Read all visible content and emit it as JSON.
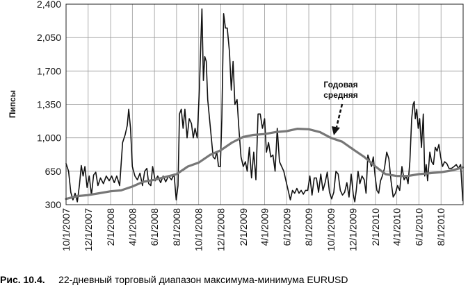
{
  "chart_data": {
    "type": "line",
    "ylabel": "Пипсы",
    "ylim": [
      300,
      2400
    ],
    "yticks": [
      "2,400",
      "2,050",
      "1,700",
      "1,350",
      "1,000",
      "650",
      "300"
    ],
    "ytick_values": [
      2400,
      2050,
      1700,
      1350,
      1000,
      650,
      300
    ],
    "xlim": [
      "2007-10-01",
      "2010-10-01"
    ],
    "xticks": [
      "10/1/2007",
      "12/1/2007",
      "2/1/2008",
      "4/1/2008",
      "6/1/2008",
      "8/1/2008",
      "10/1/2008",
      "12/1/2008",
      "2/1/2009",
      "4/1/2009",
      "6/1/2009",
      "8/1/2009",
      "10/1/2009",
      "12/1/2009",
      "2/1/2010",
      "4/1/2010",
      "6/1/2010",
      "8/1/2010"
    ],
    "grid": true,
    "annotation": {
      "line1": "Годовая",
      "line2": "средняя"
    },
    "series": [
      {
        "color": "#111111",
        "style": "thin",
        "points": [
          [
            "2007-10-01",
            730
          ],
          [
            "2007-10-08",
            650
          ],
          [
            "2007-10-14",
            430
          ],
          [
            "2007-10-20",
            350
          ],
          [
            "2007-10-26",
            420
          ],
          [
            "2007-11-01",
            330
          ],
          [
            "2007-11-07",
            510
          ],
          [
            "2007-11-12",
            710
          ],
          [
            "2007-11-17",
            600
          ],
          [
            "2007-11-22",
            700
          ],
          [
            "2007-11-28",
            480
          ],
          [
            "2007-12-04",
            600
          ],
          [
            "2007-12-10",
            400
          ],
          [
            "2007-12-16",
            610
          ],
          [
            "2007-12-22",
            640
          ],
          [
            "2007-12-28",
            500
          ],
          [
            "2008-01-04",
            580
          ],
          [
            "2008-01-12",
            520
          ],
          [
            "2008-01-20",
            600
          ],
          [
            "2008-01-28",
            550
          ],
          [
            "2008-02-04",
            600
          ],
          [
            "2008-02-11",
            530
          ],
          [
            "2008-02-18",
            600
          ],
          [
            "2008-02-26",
            500
          ],
          [
            "2008-03-05",
            950
          ],
          [
            "2008-03-12",
            1030
          ],
          [
            "2008-03-18",
            1130
          ],
          [
            "2008-03-22",
            1300
          ],
          [
            "2008-03-27",
            1100
          ],
          [
            "2008-04-01",
            700
          ],
          [
            "2008-04-08",
            600
          ],
          [
            "2008-04-15",
            560
          ],
          [
            "2008-04-22",
            630
          ],
          [
            "2008-04-29",
            500
          ],
          [
            "2008-05-05",
            650
          ],
          [
            "2008-05-11",
            680
          ],
          [
            "2008-05-16",
            520
          ],
          [
            "2008-05-22",
            500
          ],
          [
            "2008-05-27",
            700
          ],
          [
            "2008-06-03",
            550
          ],
          [
            "2008-06-10",
            600
          ],
          [
            "2008-06-18",
            530
          ],
          [
            "2008-06-25",
            600
          ],
          [
            "2008-07-02",
            540
          ],
          [
            "2008-07-10",
            600
          ],
          [
            "2008-07-18",
            560
          ],
          [
            "2008-07-25",
            620
          ],
          [
            "2008-07-31",
            350
          ],
          [
            "2008-08-05",
            500
          ],
          [
            "2008-08-09",
            1250
          ],
          [
            "2008-08-14",
            1300
          ],
          [
            "2008-08-19",
            1100
          ],
          [
            "2008-08-24",
            1300
          ],
          [
            "2008-08-30",
            1000
          ],
          [
            "2008-09-05",
            1200
          ],
          [
            "2008-09-11",
            1150
          ],
          [
            "2008-09-16",
            1000
          ],
          [
            "2008-09-21",
            1100
          ],
          [
            "2008-09-27",
            1000
          ],
          [
            "2008-10-03",
            1500
          ],
          [
            "2008-10-07",
            2000
          ],
          [
            "2008-10-10",
            2350
          ],
          [
            "2008-10-14",
            1600
          ],
          [
            "2008-10-18",
            1850
          ],
          [
            "2008-10-22",
            1800
          ],
          [
            "2008-10-26",
            1400
          ],
          [
            "2008-10-31",
            1200
          ],
          [
            "2008-11-05",
            1000
          ],
          [
            "2008-11-10",
            800
          ],
          [
            "2008-11-15",
            780
          ],
          [
            "2008-11-20",
            850
          ],
          [
            "2008-11-25",
            700
          ],
          [
            "2008-11-30",
            700
          ],
          [
            "2008-12-04",
            1200
          ],
          [
            "2008-12-09",
            2300
          ],
          [
            "2008-12-14",
            2150
          ],
          [
            "2008-12-19",
            2150
          ],
          [
            "2008-12-25",
            1900
          ],
          [
            "2008-12-30",
            1500
          ],
          [
            "2009-01-04",
            1800
          ],
          [
            "2009-01-09",
            1350
          ],
          [
            "2009-01-15",
            1400
          ],
          [
            "2009-01-20",
            1100
          ],
          [
            "2009-01-26",
            800
          ],
          [
            "2009-02-01",
            700
          ],
          [
            "2009-02-07",
            750
          ],
          [
            "2009-02-12",
            650
          ],
          [
            "2009-02-18",
            900
          ],
          [
            "2009-02-24",
            580
          ],
          [
            "2009-03-02",
            850
          ],
          [
            "2009-03-08",
            560
          ],
          [
            "2009-03-14",
            1250
          ],
          [
            "2009-03-20",
            1250
          ],
          [
            "2009-03-26",
            1100
          ],
          [
            "2009-04-01",
            1200
          ],
          [
            "2009-04-06",
            850
          ],
          [
            "2009-04-12",
            950
          ],
          [
            "2009-04-18",
            800
          ],
          [
            "2009-04-24",
            820
          ],
          [
            "2009-04-30",
            650
          ],
          [
            "2009-05-06",
            1100
          ],
          [
            "2009-05-12",
            750
          ],
          [
            "2009-05-18",
            700
          ],
          [
            "2009-05-24",
            650
          ],
          [
            "2009-05-30",
            550
          ],
          [
            "2009-06-05",
            450
          ],
          [
            "2009-06-11",
            350
          ],
          [
            "2009-06-17",
            450
          ],
          [
            "2009-06-23",
            420
          ],
          [
            "2009-06-29",
            470
          ],
          [
            "2009-07-05",
            420
          ],
          [
            "2009-07-11",
            450
          ],
          [
            "2009-07-17",
            410
          ],
          [
            "2009-07-23",
            450
          ],
          [
            "2009-07-29",
            450
          ],
          [
            "2009-08-04",
            600
          ],
          [
            "2009-08-10",
            400
          ],
          [
            "2009-08-16",
            580
          ],
          [
            "2009-08-22",
            580
          ],
          [
            "2009-08-28",
            430
          ],
          [
            "2009-09-03",
            620
          ],
          [
            "2009-09-09",
            450
          ],
          [
            "2009-09-15",
            530
          ],
          [
            "2009-09-21",
            640
          ],
          [
            "2009-09-27",
            430
          ],
          [
            "2009-10-03",
            360
          ],
          [
            "2009-10-09",
            430
          ],
          [
            "2009-10-15",
            650
          ],
          [
            "2009-10-21",
            620
          ],
          [
            "2009-10-27",
            450
          ],
          [
            "2009-11-02",
            400
          ],
          [
            "2009-11-08",
            430
          ],
          [
            "2009-11-14",
            530
          ],
          [
            "2009-11-20",
            380
          ],
          [
            "2009-11-26",
            620
          ],
          [
            "2009-12-02",
            400
          ],
          [
            "2009-12-06",
            330
          ],
          [
            "2009-12-10",
            450
          ],
          [
            "2009-12-15",
            650
          ],
          [
            "2009-12-20",
            520
          ],
          [
            "2009-12-26",
            600
          ],
          [
            "2010-01-01",
            560
          ],
          [
            "2010-01-06",
            420
          ],
          [
            "2010-01-11",
            820
          ],
          [
            "2010-01-16",
            760
          ],
          [
            "2010-01-21",
            700
          ],
          [
            "2010-01-26",
            800
          ],
          [
            "2010-01-31",
            600
          ],
          [
            "2010-02-05",
            450
          ],
          [
            "2010-02-10",
            420
          ],
          [
            "2010-02-15",
            550
          ],
          [
            "2010-02-20",
            600
          ],
          [
            "2010-02-26",
            680
          ],
          [
            "2010-03-04",
            850
          ],
          [
            "2010-03-10",
            780
          ],
          [
            "2010-03-16",
            550
          ],
          [
            "2010-03-22",
            380
          ],
          [
            "2010-03-28",
            420
          ],
          [
            "2010-04-03",
            500
          ],
          [
            "2010-04-09",
            450
          ],
          [
            "2010-04-15",
            700
          ],
          [
            "2010-04-21",
            560
          ],
          [
            "2010-04-27",
            600
          ],
          [
            "2010-05-02",
            520
          ],
          [
            "2010-05-07",
            750
          ],
          [
            "2010-05-12",
            1200
          ],
          [
            "2010-05-16",
            1350
          ],
          [
            "2010-05-19",
            1380
          ],
          [
            "2010-05-22",
            1200
          ],
          [
            "2010-05-26",
            1300
          ],
          [
            "2010-05-30",
            1100
          ],
          [
            "2010-06-03",
            1200
          ],
          [
            "2010-06-08",
            900
          ],
          [
            "2010-06-13",
            1250
          ],
          [
            "2010-06-17",
            600
          ],
          [
            "2010-06-21",
            720
          ],
          [
            "2010-06-25",
            550
          ],
          [
            "2010-07-01",
            850
          ],
          [
            "2010-07-06",
            750
          ],
          [
            "2010-07-11",
            720
          ],
          [
            "2010-07-16",
            900
          ],
          [
            "2010-07-21",
            860
          ],
          [
            "2010-07-26",
            930
          ],
          [
            "2010-07-31",
            800
          ],
          [
            "2010-08-05",
            700
          ],
          [
            "2010-08-11",
            750
          ],
          [
            "2010-08-17",
            730
          ],
          [
            "2010-08-23",
            680
          ],
          [
            "2010-08-30",
            680
          ],
          [
            "2010-09-06",
            700
          ],
          [
            "2010-09-12",
            720
          ],
          [
            "2010-09-18",
            680
          ],
          [
            "2010-09-24",
            720
          ],
          [
            "2010-09-30",
            340
          ]
        ]
      },
      {
        "color": "#777777",
        "style": "thick",
        "points": [
          [
            "2007-10-01",
            360
          ],
          [
            "2007-11-01",
            390
          ],
          [
            "2007-12-01",
            400
          ],
          [
            "2008-01-01",
            420
          ],
          [
            "2008-02-01",
            440
          ],
          [
            "2008-03-01",
            450
          ],
          [
            "2008-04-01",
            490
          ],
          [
            "2008-05-01",
            540
          ],
          [
            "2008-06-01",
            560
          ],
          [
            "2008-07-01",
            590
          ],
          [
            "2008-08-01",
            620
          ],
          [
            "2008-09-01",
            700
          ],
          [
            "2008-10-01",
            740
          ],
          [
            "2008-11-01",
            820
          ],
          [
            "2008-12-01",
            870
          ],
          [
            "2009-01-01",
            950
          ],
          [
            "2009-02-01",
            1010
          ],
          [
            "2009-03-01",
            1030
          ],
          [
            "2009-04-01",
            1040
          ],
          [
            "2009-05-01",
            1060
          ],
          [
            "2009-06-01",
            1070
          ],
          [
            "2009-07-01",
            1095
          ],
          [
            "2009-08-01",
            1090
          ],
          [
            "2009-09-01",
            1060
          ],
          [
            "2009-10-01",
            1000
          ],
          [
            "2009-11-01",
            960
          ],
          [
            "2009-12-01",
            880
          ],
          [
            "2010-01-01",
            800
          ],
          [
            "2010-02-01",
            700
          ],
          [
            "2010-03-01",
            620
          ],
          [
            "2010-04-01",
            600
          ],
          [
            "2010-05-01",
            600
          ],
          [
            "2010-06-01",
            620
          ],
          [
            "2010-07-01",
            630
          ],
          [
            "2010-08-01",
            640
          ],
          [
            "2010-09-01",
            660
          ],
          [
            "2010-09-30",
            690
          ]
        ]
      }
    ]
  },
  "caption": {
    "label": "Рис. 10.4.",
    "text": "22-дневный торговый диапазон максимума-минимума EURUSD"
  }
}
